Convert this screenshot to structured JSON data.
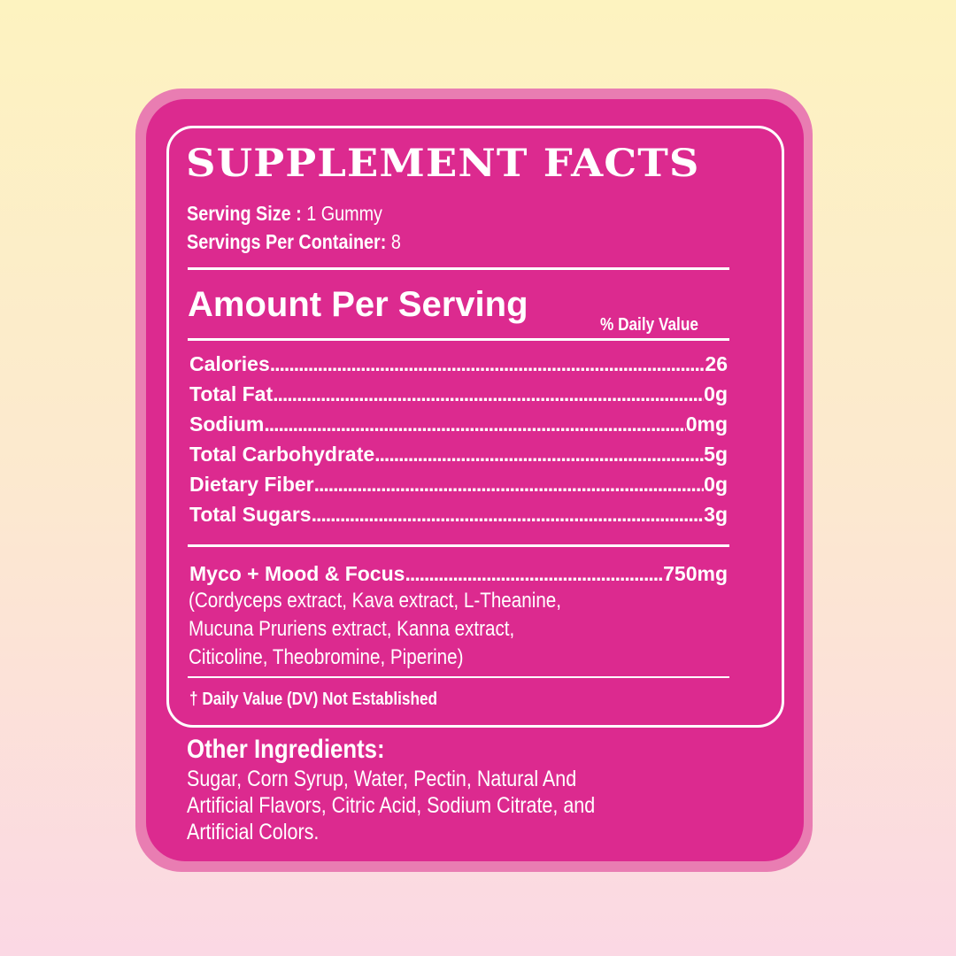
{
  "title": "SUPPLEMENT FACTS",
  "serving_size": {
    "label": "Serving Size :",
    "value": "1 Gummy"
  },
  "servings_per_container": {
    "label": "Servings Per Container:",
    "value": "8"
  },
  "amount_per_serving": "Amount Per Serving",
  "daily_value_header": "% Daily Value",
  "nutrients": [
    {
      "label": "Calories",
      "value": "26"
    },
    {
      "label": "Total Fat",
      "value": "0g"
    },
    {
      "label": "Sodium",
      "value": "0mg"
    },
    {
      "label": "Total Carbohydrate",
      "value": "5g"
    },
    {
      "label": "Dietary Fiber",
      "value": "0g"
    },
    {
      "label": "Total Sugars",
      "value": "3g"
    }
  ],
  "blend": {
    "label": "Myco + Mood & Focus ",
    "value": "750mg",
    "ingredients_lines": [
      "(Cordyceps extract, Kava extract, L-Theanine,",
      "Mucuna Pruriens extract, Kanna extract,",
      "Citicoline, Theobromine, Piperine)"
    ]
  },
  "footnote": "† Daily Value (DV) Not Established",
  "other_ingredients": {
    "heading": "Other Ingredients:",
    "lines": [
      "Sugar, Corn Syrup, Water, Pectin, Natural And",
      "Artificial Flavors, Citric Acid, Sodium Citrate, and",
      "Artificial Colors."
    ]
  },
  "colors": {
    "label_magenta": "#dc2a8f",
    "border_pink": "#e97db2",
    "bg_top": "#fdf3c0",
    "bg_bottom": "#fbd8e4"
  }
}
